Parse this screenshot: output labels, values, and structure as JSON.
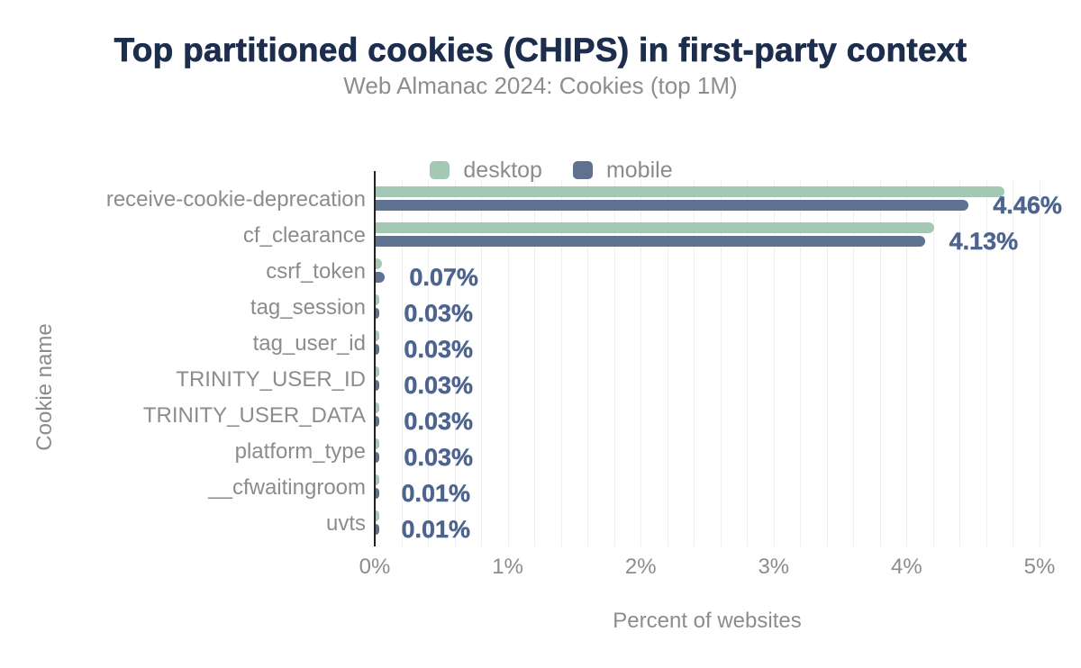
{
  "chart_data": {
    "type": "bar",
    "orientation": "horizontal",
    "title": "Top partitioned cookies (CHIPS) in first-party context",
    "subtitle": "Web Almanac 2024: Cookies (top 1M)",
    "xlabel": "Percent of websites",
    "ylabel": "Cookie name",
    "xlim": [
      0,
      5
    ],
    "x_ticks": [
      "0%",
      "1%",
      "2%",
      "3%",
      "4%",
      "5%"
    ],
    "grid": "vertical minor gridlines every 0.2%, plot area 0% to 5%",
    "legend_position": "top-center",
    "categories": [
      "receive-cookie-deprecation",
      "cf_clearance",
      "csrf_token",
      "tag_session",
      "tag_user_id",
      "TRINITY_USER_ID",
      "TRINITY_USER_DATA",
      "platform_type",
      "__cfwaitingroom",
      "uvts"
    ],
    "series": [
      {
        "name": "desktop",
        "color": "#a5c8b4",
        "values": [
          4.73,
          4.2,
          0.05,
          0.03,
          0.03,
          0.03,
          0.03,
          0.03,
          0.01,
          0.01
        ]
      },
      {
        "name": "mobile",
        "color": "#5f7190",
        "values": [
          4.46,
          4.13,
          0.07,
          0.03,
          0.03,
          0.03,
          0.03,
          0.03,
          0.01,
          0.01
        ]
      }
    ],
    "value_labels": [
      "4.46%",
      "4.13%",
      "0.07%",
      "0.03%",
      "0.03%",
      "0.03%",
      "0.03%",
      "0.03%",
      "0.01%",
      "0.01%"
    ],
    "value_labels_series": "mobile"
  },
  "colors": {
    "title": "#1d2d4d",
    "subtitle": "#8d8d8d",
    "axis_text": "#8c8c8c",
    "value_label": "#4d648e",
    "axis_line": "#212121",
    "gridline": "#efefef"
  }
}
